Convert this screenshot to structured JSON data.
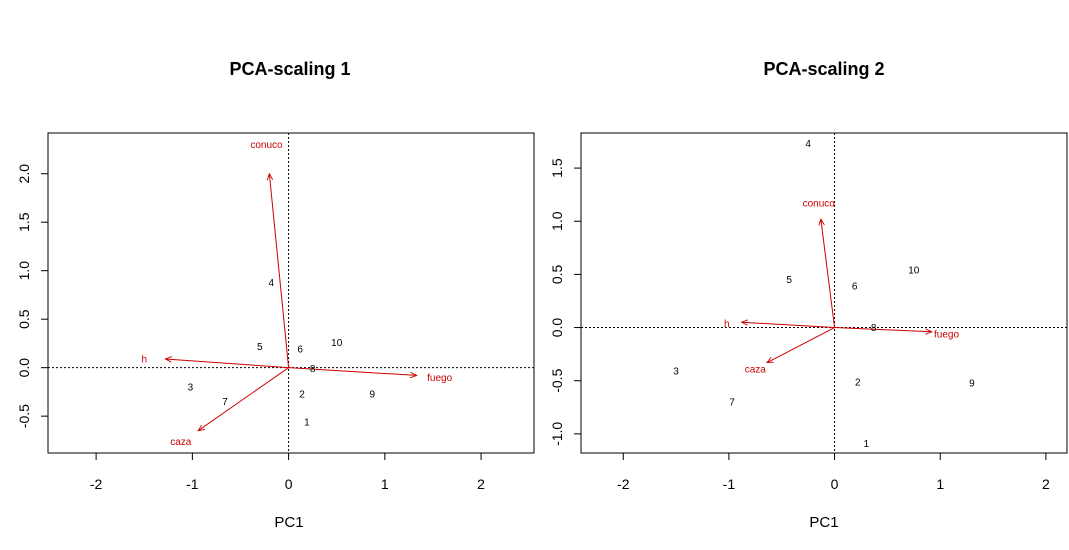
{
  "chart_data": [
    {
      "type": "scatter",
      "title": "PCA-scaling 1",
      "xlabel": "PC1",
      "ylabel": "",
      "xlim": [
        -2.5,
        2.55
      ],
      "ylim": [
        -0.88,
        2.42
      ],
      "xticks": [
        -2,
        -1,
        0,
        1,
        2
      ],
      "yticks": [
        -0.5,
        0.0,
        0.5,
        1.0,
        1.5,
        2.0
      ],
      "ytick_labels": [
        "-0.5",
        "0.0",
        "0.5",
        "1.0",
        "1.5",
        "2.0"
      ],
      "reference_lines": {
        "x": 0,
        "y": 0,
        "style": "dotted"
      },
      "sites": [
        {
          "label": "1",
          "x": 0.19,
          "y": -0.56
        },
        {
          "label": "2",
          "x": 0.14,
          "y": -0.27
        },
        {
          "label": "3",
          "x": -1.02,
          "y": -0.2
        },
        {
          "label": "4",
          "x": -0.18,
          "y": 0.88
        },
        {
          "label": "5",
          "x": -0.3,
          "y": 0.22
        },
        {
          "label": "6",
          "x": 0.12,
          "y": 0.19
        },
        {
          "label": "7",
          "x": -0.66,
          "y": -0.35
        },
        {
          "label": "8",
          "x": 0.25,
          "y": -0.01
        },
        {
          "label": "9",
          "x": 0.87,
          "y": -0.27
        },
        {
          "label": "10",
          "x": 0.5,
          "y": 0.26
        }
      ],
      "loadings": [
        {
          "label": "conuco",
          "x": -0.2,
          "y": 2.0,
          "label_x": -0.23,
          "label_y": 2.3
        },
        {
          "label": "h",
          "x": -1.28,
          "y": 0.09,
          "label_x": -1.5,
          "label_y": 0.09
        },
        {
          "label": "fuego",
          "x": 1.33,
          "y": -0.08,
          "label_x": 1.57,
          "label_y": -0.1
        },
        {
          "label": "caza",
          "x": -0.94,
          "y": -0.65,
          "label_x": -1.12,
          "label_y": -0.76
        }
      ],
      "colors": {
        "sites": "#000000",
        "loadings": "#cc0000"
      }
    },
    {
      "type": "scatter",
      "title": "PCA-scaling 2",
      "xlabel": "PC1",
      "ylabel": "",
      "xlim": [
        -2.4,
        2.2
      ],
      "ylim": [
        -1.18,
        1.83
      ],
      "xticks": [
        -2,
        -1,
        0,
        1,
        2
      ],
      "yticks": [
        -1.0,
        -0.5,
        0.0,
        0.5,
        1.0,
        1.5
      ],
      "ytick_labels": [
        "-1.0",
        "-0.5",
        "0.0",
        "0.5",
        "1.0",
        "1.5"
      ],
      "reference_lines": {
        "x": 0,
        "y": 0,
        "style": "dotted"
      },
      "sites": [
        {
          "label": "1",
          "x": 0.3,
          "y": -1.09
        },
        {
          "label": "2",
          "x": 0.22,
          "y": -0.51
        },
        {
          "label": "3",
          "x": -1.5,
          "y": -0.41
        },
        {
          "label": "4",
          "x": -0.25,
          "y": 1.73
        },
        {
          "label": "5",
          "x": -0.43,
          "y": 0.45
        },
        {
          "label": "6",
          "x": 0.19,
          "y": 0.39
        },
        {
          "label": "7",
          "x": -0.97,
          "y": -0.7
        },
        {
          "label": "8",
          "x": 0.37,
          "y": 0.0
        },
        {
          "label": "9",
          "x": 1.3,
          "y": -0.52
        },
        {
          "label": "10",
          "x": 0.75,
          "y": 0.54
        }
      ],
      "loadings": [
        {
          "label": "conuco",
          "x": -0.13,
          "y": 1.02,
          "label_x": -0.15,
          "label_y": 1.17
        },
        {
          "label": "h",
          "x": -0.88,
          "y": 0.05,
          "label_x": -1.02,
          "label_y": 0.04
        },
        {
          "label": "fuego",
          "x": 0.92,
          "y": -0.04,
          "label_x": 1.06,
          "label_y": -0.06
        },
        {
          "label": "caza",
          "x": -0.64,
          "y": -0.33,
          "label_x": -0.75,
          "label_y": -0.39
        }
      ],
      "colors": {
        "sites": "#000000",
        "loadings": "#cc0000"
      }
    }
  ]
}
